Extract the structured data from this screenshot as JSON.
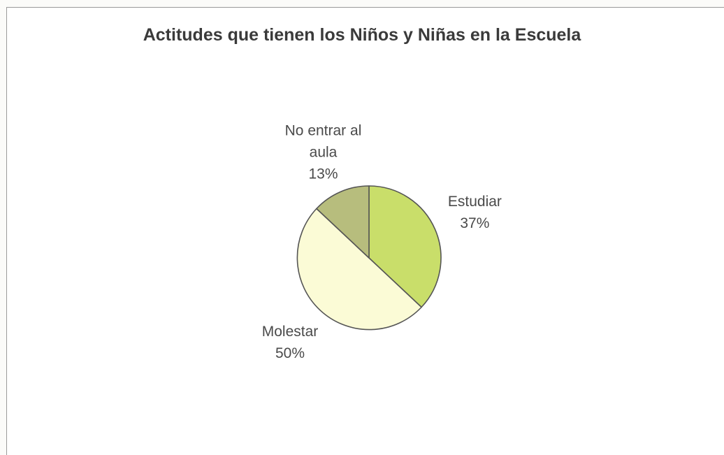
{
  "chart_data": {
    "type": "pie",
    "title": "Actitudes que tienen los Niños y Niñas en la Escuela",
    "slices": [
      {
        "label": "Estudiar",
        "value": 37,
        "percent_label": "37%",
        "color": "#c9de6a"
      },
      {
        "label": "Molestar",
        "value": 50,
        "percent_label": "50%",
        "color": "#fbfbd6"
      },
      {
        "label": "No entrar al aula",
        "label_lines": [
          "No entrar al",
          "aula"
        ],
        "value": 13,
        "percent_label": "13%",
        "color": "#b7bd7d"
      }
    ],
    "start_angle_deg": 0,
    "direction": "clockwise",
    "legend": "none"
  }
}
